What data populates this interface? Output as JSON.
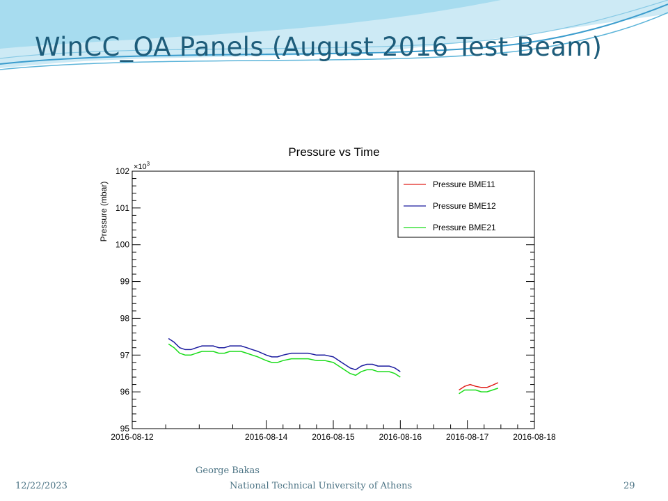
{
  "slide": {
    "title": "WinCC_OA Panels (August 2016 Test Beam)",
    "footer": {
      "author": "George Bakas",
      "date": "12/22/2023",
      "institution": "National Technical University of Athens",
      "page": "29"
    },
    "colors": {
      "title": "#1d5c7a",
      "wave_dark": "#3a9ccd",
      "wave_light": "#a7dcef",
      "footer_text": "#4a7283"
    }
  },
  "chart_data": {
    "type": "line",
    "title": "Pressure vs Time",
    "xlabel": "",
    "ylabel": "Pressure (mbar)",
    "y_multiplier_label": "×10",
    "y_multiplier_exponent": "3",
    "xlim": [
      "2016-08-12T00:00",
      "2016-08-18T00:00"
    ],
    "ylim": [
      95,
      102
    ],
    "x_ticks": [
      "2016-08-12",
      "2016-08-14",
      "2016-08-15",
      "2016-08-16",
      "2016-08-17",
      "2016-08-18"
    ],
    "y_ticks": [
      "95",
      "96",
      "97",
      "98",
      "99",
      "100",
      "101",
      "102"
    ],
    "grid": false,
    "legend_position": "top-right",
    "series": [
      {
        "name": "Pressure BME11",
        "color": "#e0201b",
        "segments": [
          [
            [
              "2016-08-16T21:00",
              96.05
            ],
            [
              "2016-08-16T23:00",
              96.15
            ],
            [
              "2016-08-17T01:00",
              96.2
            ],
            [
              "2016-08-17T03:00",
              96.15
            ],
            [
              "2016-08-17T05:00",
              96.12
            ],
            [
              "2016-08-17T07:00",
              96.12
            ],
            [
              "2016-08-17T09:00",
              96.18
            ],
            [
              "2016-08-17T11:00",
              96.25
            ]
          ]
        ]
      },
      {
        "name": "Pressure BME12",
        "color": "#1a1a9e",
        "segments": [
          [
            [
              "2016-08-12T13:00",
              97.45
            ],
            [
              "2016-08-12T15:00",
              97.35
            ],
            [
              "2016-08-12T17:00",
              97.2
            ],
            [
              "2016-08-12T19:00",
              97.15
            ],
            [
              "2016-08-12T21:00",
              97.15
            ],
            [
              "2016-08-12T23:00",
              97.2
            ],
            [
              "2016-08-13T01:00",
              97.25
            ],
            [
              "2016-08-13T03:00",
              97.25
            ],
            [
              "2016-08-13T05:00",
              97.25
            ],
            [
              "2016-08-13T07:00",
              97.2
            ],
            [
              "2016-08-13T09:00",
              97.2
            ],
            [
              "2016-08-13T11:00",
              97.25
            ],
            [
              "2016-08-13T13:00",
              97.25
            ],
            [
              "2016-08-13T15:00",
              97.25
            ],
            [
              "2016-08-13T17:00",
              97.2
            ],
            [
              "2016-08-13T19:00",
              97.15
            ],
            [
              "2016-08-13T21:00",
              97.1
            ],
            [
              "2016-08-14T00:00",
              97.0
            ],
            [
              "2016-08-14T02:00",
              96.95
            ],
            [
              "2016-08-14T04:00",
              96.95
            ],
            [
              "2016-08-14T06:00",
              97.0
            ],
            [
              "2016-08-14T09:00",
              97.05
            ],
            [
              "2016-08-14T12:00",
              97.05
            ],
            [
              "2016-08-14T15:00",
              97.05
            ],
            [
              "2016-08-14T18:00",
              97.0
            ],
            [
              "2016-08-14T21:00",
              97.0
            ],
            [
              "2016-08-15T00:00",
              96.95
            ],
            [
              "2016-08-15T03:00",
              96.8
            ],
            [
              "2016-08-15T06:00",
              96.65
            ],
            [
              "2016-08-15T08:00",
              96.6
            ],
            [
              "2016-08-15T10:00",
              96.7
            ],
            [
              "2016-08-15T12:00",
              96.75
            ],
            [
              "2016-08-15T14:00",
              96.75
            ],
            [
              "2016-08-15T16:00",
              96.7
            ],
            [
              "2016-08-15T18:00",
              96.7
            ],
            [
              "2016-08-15T20:00",
              96.7
            ],
            [
              "2016-08-15T22:00",
              96.65
            ],
            [
              "2016-08-16T00:00",
              96.55
            ]
          ]
        ]
      },
      {
        "name": "Pressure BME21",
        "color": "#19dc19",
        "segments": [
          [
            [
              "2016-08-12T13:00",
              97.3
            ],
            [
              "2016-08-12T15:00",
              97.2
            ],
            [
              "2016-08-12T17:00",
              97.05
            ],
            [
              "2016-08-12T19:00",
              97.0
            ],
            [
              "2016-08-12T21:00",
              97.0
            ],
            [
              "2016-08-12T23:00",
              97.05
            ],
            [
              "2016-08-13T01:00",
              97.1
            ],
            [
              "2016-08-13T03:00",
              97.1
            ],
            [
              "2016-08-13T05:00",
              97.1
            ],
            [
              "2016-08-13T07:00",
              97.05
            ],
            [
              "2016-08-13T09:00",
              97.05
            ],
            [
              "2016-08-13T11:00",
              97.1
            ],
            [
              "2016-08-13T13:00",
              97.1
            ],
            [
              "2016-08-13T15:00",
              97.1
            ],
            [
              "2016-08-13T17:00",
              97.05
            ],
            [
              "2016-08-13T19:00",
              97.0
            ],
            [
              "2016-08-13T21:00",
              96.95
            ],
            [
              "2016-08-14T00:00",
              96.85
            ],
            [
              "2016-08-14T02:00",
              96.8
            ],
            [
              "2016-08-14T04:00",
              96.8
            ],
            [
              "2016-08-14T06:00",
              96.85
            ],
            [
              "2016-08-14T09:00",
              96.9
            ],
            [
              "2016-08-14T12:00",
              96.9
            ],
            [
              "2016-08-14T15:00",
              96.9
            ],
            [
              "2016-08-14T18:00",
              96.85
            ],
            [
              "2016-08-14T21:00",
              96.85
            ],
            [
              "2016-08-15T00:00",
              96.8
            ],
            [
              "2016-08-15T03:00",
              96.65
            ],
            [
              "2016-08-15T06:00",
              96.5
            ],
            [
              "2016-08-15T08:00",
              96.45
            ],
            [
              "2016-08-15T10:00",
              96.55
            ],
            [
              "2016-08-15T12:00",
              96.6
            ],
            [
              "2016-08-15T14:00",
              96.6
            ],
            [
              "2016-08-15T16:00",
              96.55
            ],
            [
              "2016-08-15T18:00",
              96.55
            ],
            [
              "2016-08-15T20:00",
              96.55
            ],
            [
              "2016-08-15T22:00",
              96.5
            ],
            [
              "2016-08-16T00:00",
              96.4
            ]
          ],
          [
            [
              "2016-08-16T21:00",
              95.95
            ],
            [
              "2016-08-16T23:00",
              96.05
            ],
            [
              "2016-08-17T01:00",
              96.05
            ],
            [
              "2016-08-17T03:00",
              96.05
            ],
            [
              "2016-08-17T05:00",
              96.0
            ],
            [
              "2016-08-17T07:00",
              96.0
            ],
            [
              "2016-08-17T09:00",
              96.05
            ],
            [
              "2016-08-17T11:00",
              96.1
            ]
          ]
        ]
      }
    ]
  }
}
